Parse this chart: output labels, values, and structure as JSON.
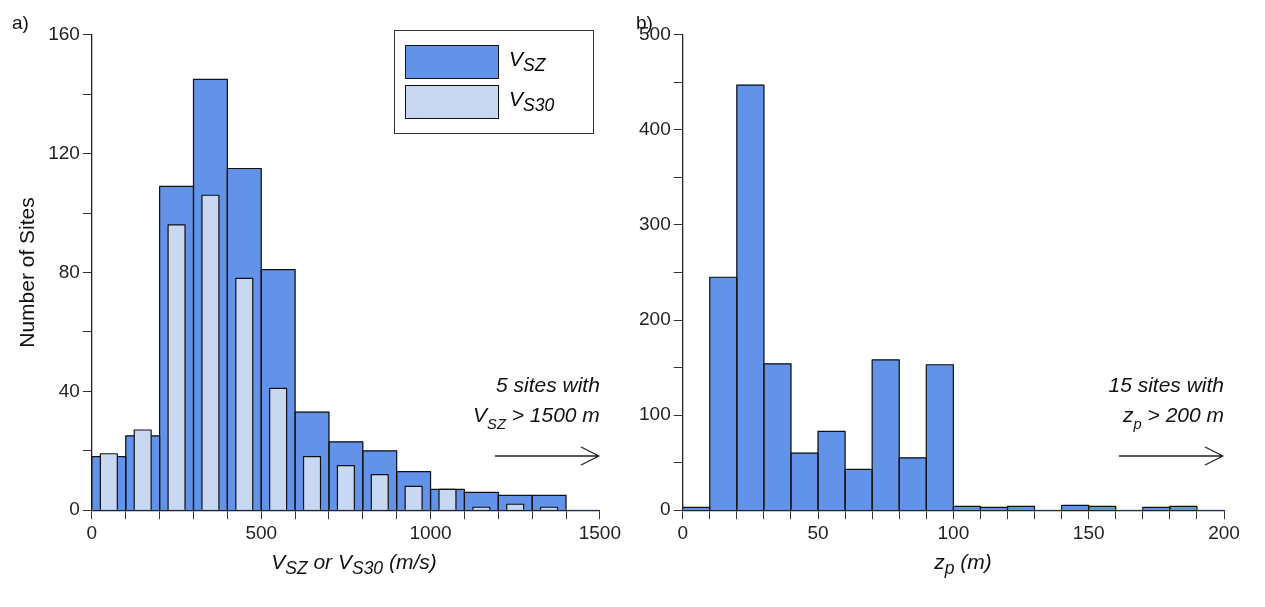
{
  "chart_data": [
    {
      "type": "histogram",
      "title": "a)",
      "xlabel": "V$_{SZ}$ or V$_{S30}$ (m/s)",
      "ylabel": "Number of Sites",
      "bins": [
        0,
        100,
        200,
        300,
        400,
        500,
        600,
        700,
        800,
        900,
        1000,
        1100,
        1200,
        1300,
        1400,
        1500
      ],
      "series": [
        {
          "name": "V$_{SZ}$",
          "color": "#6293e8",
          "values": [
            18,
            25,
            109,
            145,
            115,
            81,
            33,
            23,
            20,
            13,
            7,
            6,
            5,
            5,
            0
          ]
        },
        {
          "name": "V$_{S30}$",
          "color": "#c9d8f2",
          "values": [
            19,
            27,
            96,
            106,
            78,
            41,
            18,
            15,
            12,
            8,
            7,
            1,
            2,
            1,
            0
          ]
        }
      ],
      "xlim": [
        0,
        1500
      ],
      "xticks": [
        0,
        {
          "value": 100,
          "label": null
        },
        {
          "value": 200,
          "label": null
        },
        {
          "value": 300,
          "label": null
        },
        {
          "value": 400,
          "label": null
        },
        500,
        {
          "value": 600,
          "label": null
        },
        {
          "value": 700,
          "label": null
        },
        {
          "value": 800,
          "label": null
        },
        {
          "value": 900,
          "label": null
        },
        1000,
        {
          "value": 1100,
          "label": null
        },
        {
          "value": 1200,
          "label": null
        },
        {
          "value": 1300,
          "label": null
        },
        {
          "value": 1400,
          "label": null
        },
        1500
      ],
      "ylim": [
        0,
        160
      ],
      "yticks": [
        0,
        {
          "value": 20,
          "label": null
        },
        40,
        {
          "value": 60,
          "label": null
        },
        80,
        {
          "value": 100,
          "label": null
        },
        120,
        {
          "value": 140,
          "label": null
        },
        160
      ],
      "legend": "top right",
      "annotations": [
        "5 sites with V$_{SZ}$ > 1500 m"
      ]
    },
    {
      "type": "histogram",
      "title": "b)",
      "xlabel": "z$_{p}$ (m)",
      "bins": [
        0,
        10,
        20,
        30,
        40,
        50,
        60,
        70,
        80,
        90,
        100,
        110,
        120,
        130,
        140,
        150,
        160,
        170,
        180,
        190,
        200
      ],
      "series": [
        {
          "color": "#6293e8",
          "values": [
            3,
            245,
            447,
            154,
            60,
            83,
            43,
            158,
            55,
            153,
            4,
            3,
            4,
            0,
            5,
            4,
            0,
            3,
            4,
            0
          ]
        }
      ],
      "xlim": [
        0,
        200
      ],
      "xticks": [
        0,
        {
          "value": 10,
          "label": null
        },
        {
          "value": 20,
          "label": null
        },
        {
          "value": 30,
          "label": null
        },
        {
          "value": 40,
          "label": null
        },
        50,
        {
          "value": 60,
          "label": null
        },
        {
          "value": 70,
          "label": null
        },
        {
          "value": 80,
          "label": null
        },
        {
          "value": 90,
          "label": null
        },
        100,
        {
          "value": 110,
          "label": null
        },
        {
          "value": 120,
          "label": null
        },
        {
          "value": 130,
          "label": null
        },
        {
          "value": 140,
          "label": null
        },
        150,
        {
          "value": 160,
          "label": null
        },
        {
          "value": 170,
          "label": null
        },
        {
          "value": 180,
          "label": null
        },
        {
          "value": 190,
          "label": null
        },
        200
      ],
      "ylim": [
        0,
        500
      ],
      "yticks": [
        0,
        {
          "value": 50,
          "label": null
        },
        100,
        {
          "value": 150,
          "label": null
        },
        200,
        {
          "value": 250,
          "label": null
        },
        300,
        {
          "value": 350,
          "label": null
        },
        400,
        {
          "value": 450,
          "label": null
        },
        500
      ],
      "annotations": [
        "15 sites with z$_{p}$ > 200 m"
      ]
    }
  ]
}
